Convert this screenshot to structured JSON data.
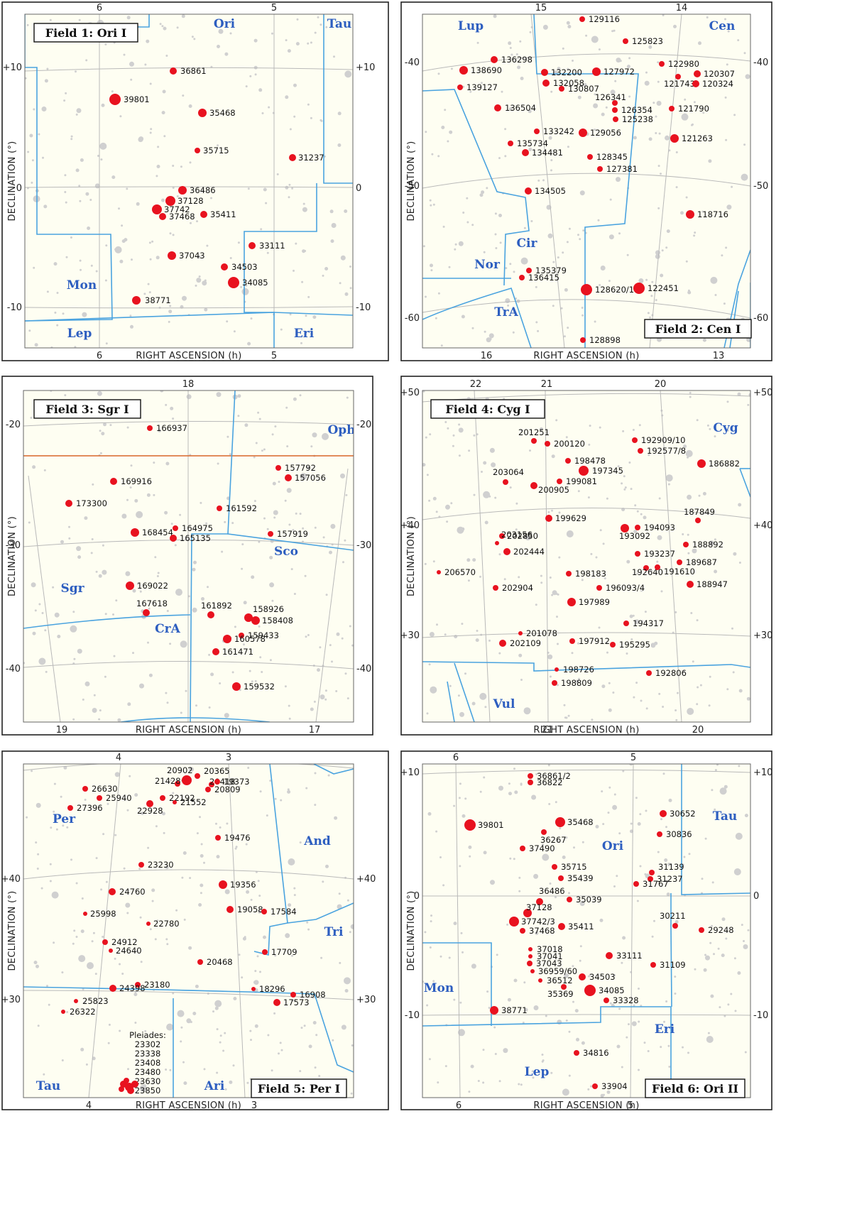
{
  "panels": [
    {
      "title": "Field 1: Ori I",
      "ra_top": [
        "6",
        "5"
      ],
      "ra_bottom": [
        "6",
        "5"
      ],
      "dec_left": [
        "+10",
        "0",
        "-10"
      ],
      "dec_right": [
        "+10",
        "0",
        "-10"
      ],
      "xlabel": "RIGHT ASCENSION (h)",
      "ylabel": "DECLINATION (°)",
      "constellations": [
        "Ori",
        "Tau",
        "Mon",
        "Lep",
        "Eri"
      ],
      "stars": [
        "36861",
        "39801",
        "35468",
        "35715",
        "31237",
        "36486",
        "37128",
        "37742",
        "37468",
        "35411",
        "33111",
        "37043",
        "34503",
        "34085",
        "38771"
      ]
    },
    {
      "title": "Field 2: Cen I",
      "ra_top": [
        "15",
        "14"
      ],
      "ra_bottom": [
        "16",
        "13"
      ],
      "dec_left": [
        "-40",
        "-50",
        "-60"
      ],
      "dec_right": [
        "-40",
        "-50",
        "-60"
      ],
      "xlabel": "RIGHT ASCENSION (h)",
      "ylabel": "DECLINATION (°)",
      "constellations": [
        "Lup",
        "Cen",
        "Nor",
        "Cir",
        "TrA"
      ],
      "stars": [
        "129116",
        "125823",
        "136298",
        "122980",
        "138690",
        "132200",
        "127972",
        "120307",
        "121743",
        "120324",
        "132058",
        "130807",
        "139127",
        "126341",
        "126354",
        "136504",
        "121790",
        "125238",
        "133242",
        "129056",
        "121263",
        "135734",
        "134481",
        "128345",
        "127381",
        "134505",
        "118716",
        "135379",
        "136415",
        "128620/1",
        "122451",
        "128898"
      ]
    },
    {
      "title": "Field 3: Sgr I",
      "ra_top": [
        "18"
      ],
      "ra_bottom": [
        "19",
        "17"
      ],
      "dec_left": [
        "-20",
        "-30",
        "-40"
      ],
      "dec_right": [
        "-20",
        "-30",
        "-40"
      ],
      "xlabel": "RIGHT ASCENSION (h)",
      "ylabel": "DECLINATION (°)",
      "constellations": [
        "Oph",
        "Sgr",
        "Sco",
        "CrA"
      ],
      "stars": [
        "166937",
        "157792",
        "157056",
        "169916",
        "173300",
        "161592",
        "164975",
        "168454",
        "165135",
        "157919",
        "169022",
        "167618",
        "161892",
        "158926",
        "158408",
        "159433",
        "160578",
        "161471",
        "159532"
      ]
    },
    {
      "title": "Field 4: Cyg I",
      "ra_top": [
        "22",
        "21",
        "20"
      ],
      "ra_bottom": [
        "21",
        "20"
      ],
      "dec_left": [
        "+50",
        "+40",
        "+30"
      ],
      "dec_right": [
        "+50",
        "+40",
        "+30"
      ],
      "xlabel": "RIGHT ASCENSION (h)",
      "ylabel": "DECLINATION (°)",
      "constellations": [
        "Cyg",
        "Vul"
      ],
      "stars": [
        "201251",
        "200120",
        "192909/10",
        "192577/8",
        "198478",
        "186882",
        "197345",
        "203064",
        "199081",
        "200905",
        "199629",
        "193092",
        "194093",
        "187849",
        "202850",
        "203156",
        "202444",
        "193237",
        "188892",
        "189687",
        "192640",
        "191610",
        "206570",
        "198183",
        "196093/4",
        "188947",
        "202904",
        "197989",
        "194317",
        "201078",
        "202109",
        "197912",
        "195295",
        "198726",
        "192806",
        "198809"
      ]
    },
    {
      "title": "Field 5: Per I",
      "ra_top": [
        "4",
        "3"
      ],
      "ra_bottom": [
        "4",
        "3"
      ],
      "dec_left": [
        "+40",
        "+30"
      ],
      "dec_right": [
        "+40",
        "+30"
      ],
      "xlabel": "RIGHT ASCENSION (h)",
      "ylabel": "DECLINATION (°)",
      "constellations": [
        "Per",
        "And",
        "Tri",
        "Tau",
        "Ari"
      ],
      "stars": [
        "20902",
        "20365",
        "20418",
        "21428",
        "19373",
        "20809",
        "26630",
        "25940",
        "22192",
        "21552",
        "27396",
        "22928",
        "19476",
        "23230",
        "19356",
        "24760",
        "19058",
        "17584",
        "25998",
        "22780",
        "24912",
        "24640",
        "17709",
        "20468",
        "23180",
        "24398",
        "18296",
        "16908",
        "25823",
        "17573",
        "26322"
      ],
      "pleiades_label": "Pleiades:",
      "pleiades": [
        "23302",
        "23338",
        "23408",
        "23480",
        "23630",
        "23850"
      ]
    },
    {
      "title": "Field 6: Ori II",
      "ra_top": [
        "6",
        "5"
      ],
      "ra_bottom": [
        "6",
        "5"
      ],
      "dec_left": [
        "+10",
        "0",
        "-10"
      ],
      "dec_right": [
        "+10",
        "0",
        "-10"
      ],
      "xlabel": "RIGHT ASCENSION (h)",
      "ylabel": "DECLINATION (°)",
      "constellations": [
        "Tau",
        "Ori",
        "Mon",
        "Eri",
        "Lep"
      ],
      "stars": [
        "36861/2",
        "36822",
        "39801",
        "35468",
        "30652",
        "36267",
        "30836",
        "37490",
        "35715",
        "31139",
        "31237",
        "35439",
        "31767",
        "36486",
        "35039",
        "37128",
        "37742/3",
        "35411",
        "37468",
        "30211",
        "29248",
        "37018",
        "37041",
        "37043",
        "33111",
        "36959/60",
        "31109",
        "36512",
        "34503",
        "35369",
        "34085",
        "33328",
        "38771",
        "34816",
        "33904"
      ]
    }
  ]
}
